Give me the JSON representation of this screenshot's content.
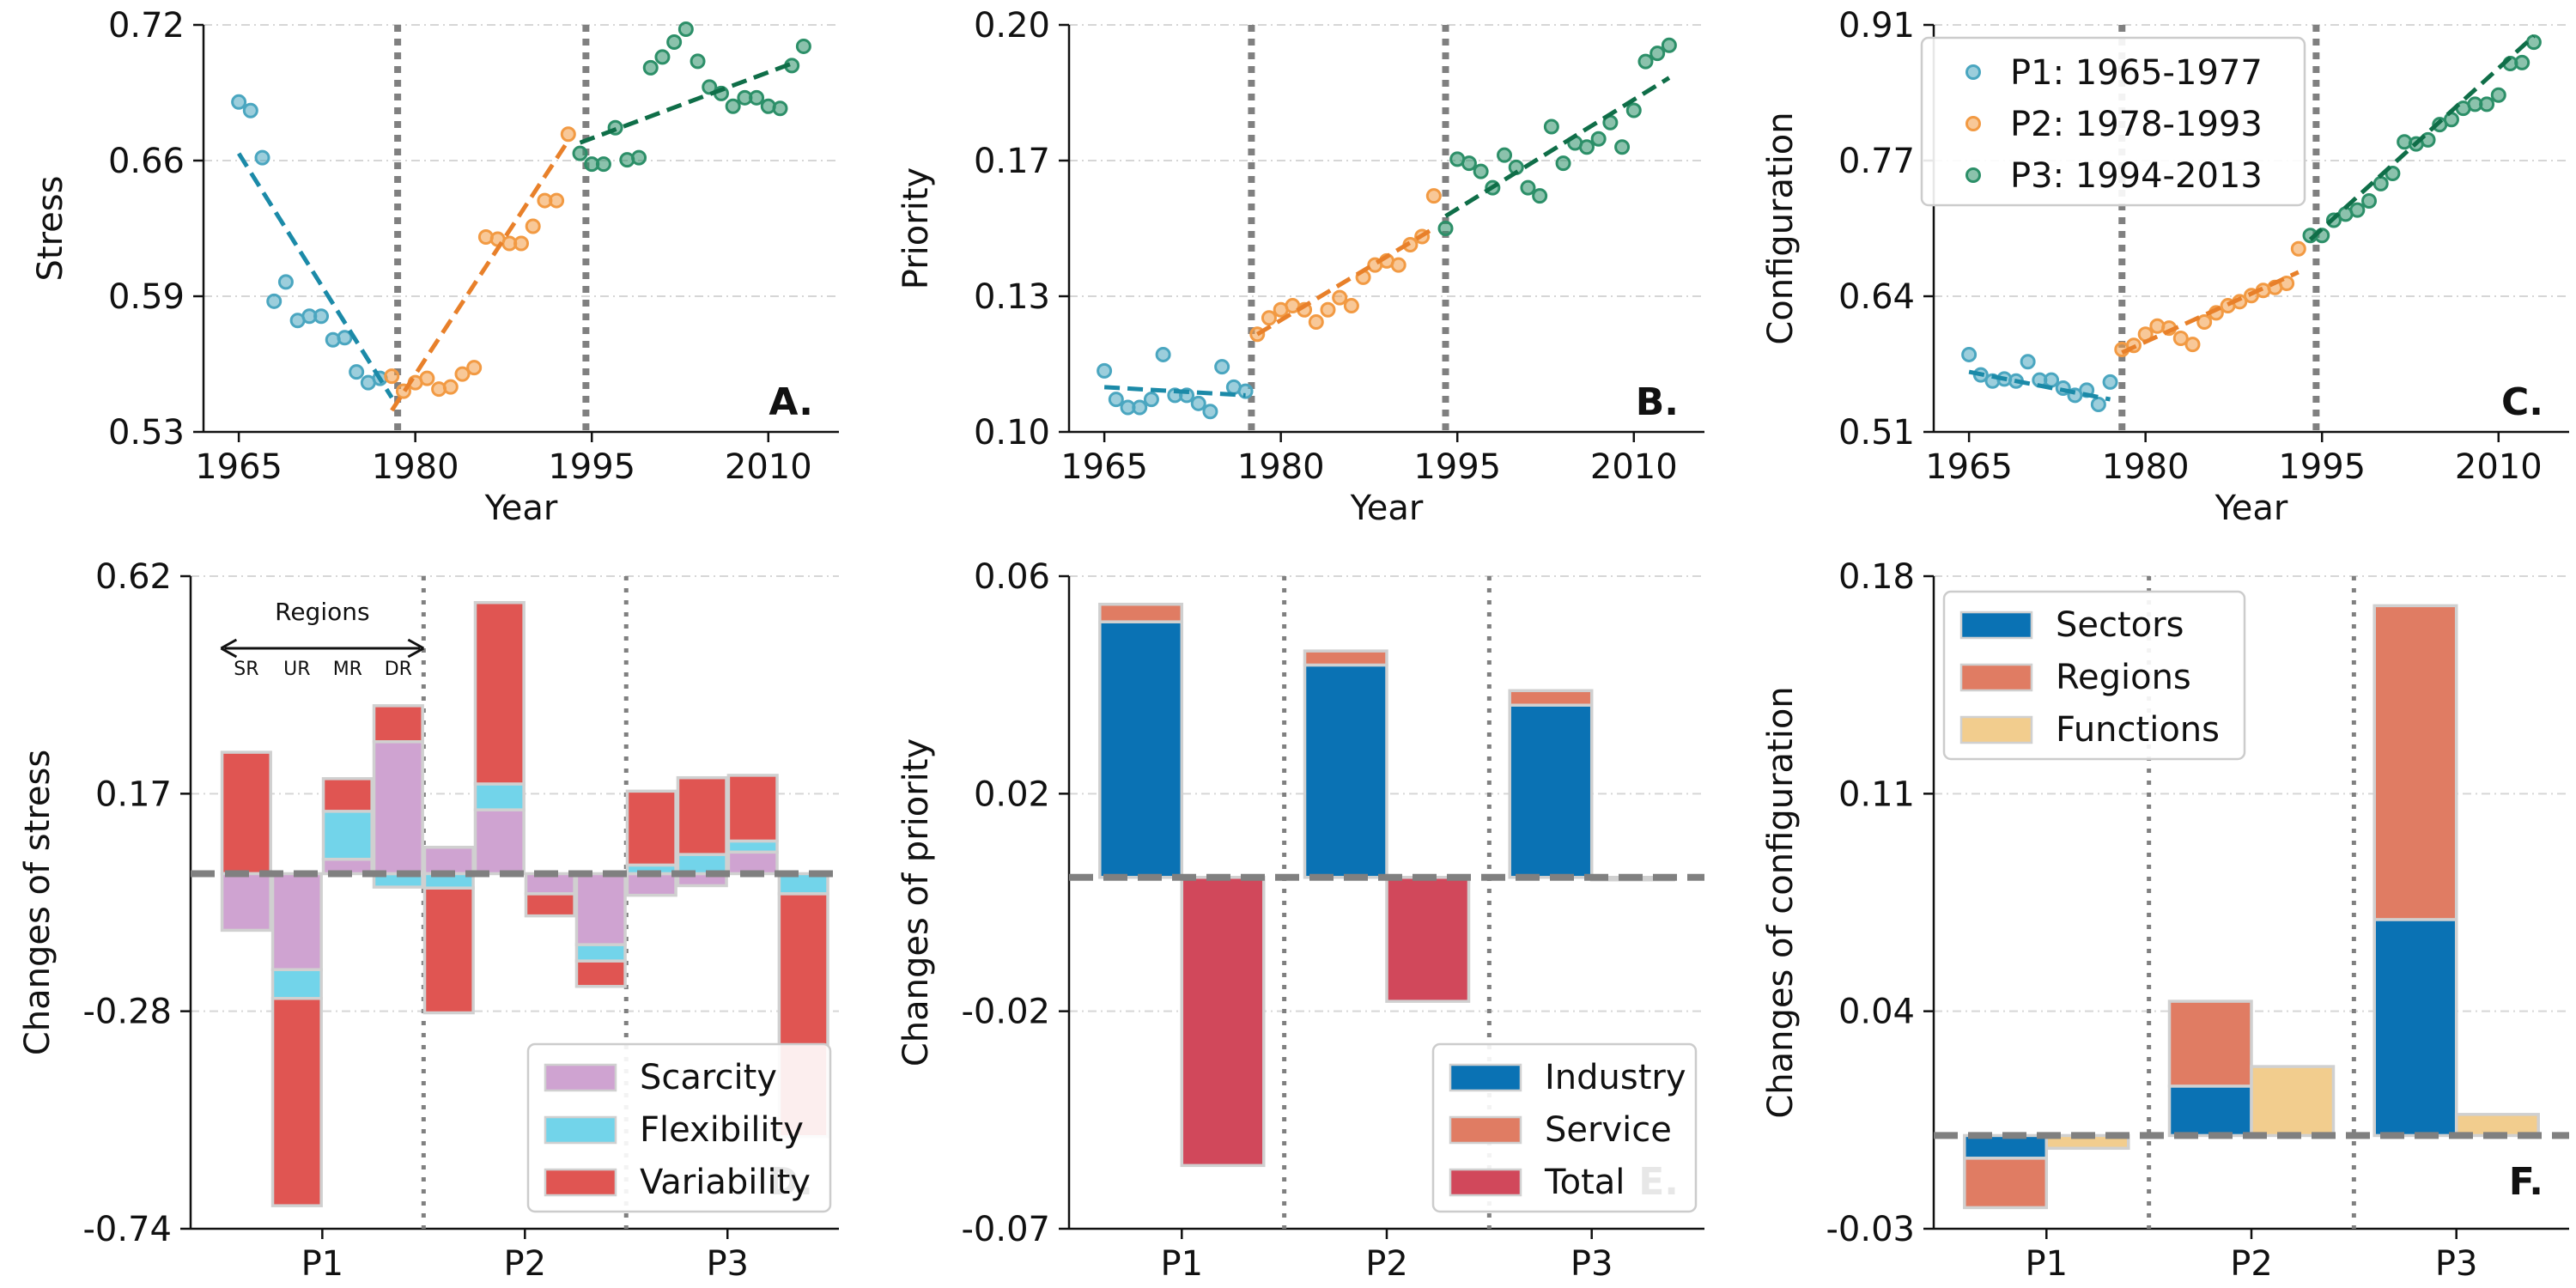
{
  "colors": {
    "p1": "#4aa6c0",
    "p2": "#f29a43",
    "p3": "#2c8f68",
    "p1_fit": "#1b8aa8",
    "p2_fit": "#e8802a",
    "p3_fit": "#0f6e48",
    "scarcity": "#cfa3d1",
    "flexibility": "#72d4ea",
    "variability": "#e05552",
    "industry": "#0a72b4",
    "service": "#e07c63",
    "total": "#d1485b",
    "functions": "#f2cd8e",
    "divider": "#808080",
    "grid": "#d6d6d6",
    "bar_edge": "#d0d0d0"
  },
  "chart_data": [
    {
      "id": "A",
      "type": "scatter",
      "panel_label": "A.",
      "xlabel": "Year",
      "ylabel": "Stress",
      "xlim": [
        1962,
        2016
      ],
      "ylim": [
        0.53,
        0.72
      ],
      "xticks": [
        "1965",
        "1980",
        "1995",
        "2010"
      ],
      "yticks": [
        "0.53",
        "0.59",
        "0.66",
        "0.72"
      ],
      "dividers": [
        1978.5,
        1994.5
      ],
      "series": [
        {
          "period": "p1",
          "x": [
            1965,
            1966,
            1967,
            1968,
            1969,
            1970,
            1971,
            1972,
            1973,
            1974,
            1975,
            1976,
            1977
          ],
          "y": [
            0.684,
            0.68,
            0.658,
            0.591,
            0.6,
            0.582,
            0.584,
            0.584,
            0.573,
            0.574,
            0.558,
            0.553,
            0.555
          ],
          "fit": [
            [
              1965,
              0.66
            ],
            [
              1978,
              0.546
            ]
          ]
        },
        {
          "period": "p2",
          "x": [
            1978,
            1979,
            1980,
            1981,
            1982,
            1983,
            1984,
            1985,
            1986,
            1987,
            1988,
            1989,
            1990,
            1991,
            1992,
            1993
          ],
          "y": [
            0.556,
            0.549,
            0.553,
            0.555,
            0.55,
            0.551,
            0.557,
            0.56,
            0.621,
            0.62,
            0.618,
            0.618,
            0.626,
            0.638,
            0.638,
            0.669
          ],
          "fit": [
            [
              1978,
              0.54
            ],
            [
              1993,
              0.666
            ]
          ]
        },
        {
          "period": "p3",
          "x": [
            1994,
            1995,
            1996,
            1997,
            1998,
            1999,
            2000,
            2001,
            2002,
            2003,
            2004,
            2005,
            2006,
            2007,
            2008,
            2009,
            2010,
            2011,
            2012,
            2013
          ],
          "y": [
            0.66,
            0.655,
            0.655,
            0.672,
            0.657,
            0.658,
            0.7,
            0.705,
            0.712,
            0.718,
            0.703,
            0.691,
            0.688,
            0.682,
            0.686,
            0.686,
            0.682,
            0.681,
            0.701,
            0.71
          ],
          "fit": [
            [
              1994,
              0.665
            ],
            [
              2012,
              0.702
            ]
          ]
        }
      ]
    },
    {
      "id": "B",
      "type": "scatter",
      "panel_label": "B.",
      "xlabel": "Year",
      "ylabel": "Priority",
      "xlim": [
        1962,
        2016
      ],
      "ylim": [
        0.1,
        0.2
      ],
      "xticks": [
        "1965",
        "1980",
        "1995",
        "2010"
      ],
      "yticks": [
        "0.10",
        "0.13",
        "0.17",
        "0.20"
      ],
      "dividers": [
        1977.5,
        1994
      ],
      "series": [
        {
          "period": "p1",
          "x": [
            1965,
            1966,
            1967,
            1968,
            1969,
            1970,
            1971,
            1972,
            1973,
            1974,
            1975,
            1976,
            1977
          ],
          "y": [
            0.115,
            0.108,
            0.106,
            0.106,
            0.108,
            0.119,
            0.109,
            0.109,
            0.107,
            0.105,
            0.116,
            0.111,
            0.11
          ],
          "fit": [
            [
              1965,
              0.111
            ],
            [
              1977,
              0.109
            ]
          ]
        },
        {
          "period": "p2",
          "x": [
            1978,
            1979,
            1980,
            1981,
            1982,
            1983,
            1984,
            1985,
            1986,
            1987,
            1988,
            1989,
            1990,
            1991,
            1992,
            1993
          ],
          "y": [
            0.124,
            0.128,
            0.13,
            0.131,
            0.13,
            0.127,
            0.13,
            0.133,
            0.131,
            0.138,
            0.141,
            0.142,
            0.141,
            0.146,
            0.148,
            0.158
          ],
          "fit": [
            [
              1978,
              0.124
            ],
            [
              1993,
              0.15
            ]
          ]
        },
        {
          "period": "p3",
          "x": [
            1994,
            1995,
            1996,
            1997,
            1998,
            1999,
            2000,
            2001,
            2002,
            2003,
            2004,
            2005,
            2006,
            2007,
            2008,
            2009,
            2010,
            2011,
            2012,
            2013
          ],
          "y": [
            0.15,
            0.167,
            0.166,
            0.164,
            0.16,
            0.168,
            0.165,
            0.16,
            0.158,
            0.175,
            0.166,
            0.171,
            0.17,
            0.172,
            0.176,
            0.17,
            0.179,
            0.191,
            0.193,
            0.195
          ],
          "fit": [
            [
              1994,
              0.153
            ],
            [
              2013,
              0.187
            ]
          ]
        }
      ]
    },
    {
      "id": "C",
      "type": "scatter",
      "panel_label": "C.",
      "xlabel": "Year",
      "ylabel": "Configuration",
      "xlim": [
        1962,
        2016
      ],
      "ylim": [
        0.51,
        0.91
      ],
      "xticks": [
        "1965",
        "1980",
        "1995",
        "2010"
      ],
      "yticks": [
        "0.51",
        "0.64",
        "0.77",
        "0.91"
      ],
      "dividers": [
        1978,
        1994.5
      ],
      "legend": {
        "placement": "upper-left",
        "items": [
          {
            "period": "p1",
            "label": "P1: 1965-1977"
          },
          {
            "period": "p2",
            "label": "P2: 1978-1993"
          },
          {
            "period": "p3",
            "label": "P3: 1994-2013"
          }
        ]
      },
      "series": [
        {
          "period": "p1",
          "x": [
            1965,
            1966,
            1967,
            1968,
            1969,
            1970,
            1971,
            1972,
            1973,
            1974,
            1975,
            1976,
            1977
          ],
          "y": [
            0.586,
            0.566,
            0.56,
            0.562,
            0.56,
            0.579,
            0.561,
            0.561,
            0.553,
            0.546,
            0.551,
            0.537,
            0.559
          ],
          "fit": [
            [
              1965,
              0.569
            ],
            [
              1977,
              0.542
            ]
          ]
        },
        {
          "period": "p2",
          "x": [
            1978,
            1979,
            1980,
            1981,
            1982,
            1983,
            1984,
            1985,
            1986,
            1987,
            1988,
            1989,
            1990,
            1991,
            1992,
            1993
          ],
          "y": [
            0.591,
            0.595,
            0.606,
            0.614,
            0.612,
            0.602,
            0.596,
            0.618,
            0.627,
            0.634,
            0.638,
            0.644,
            0.649,
            0.652,
            0.656,
            0.69
          ],
          "fit": [
            [
              1978,
              0.588
            ],
            [
              1993,
              0.667
            ]
          ]
        },
        {
          "period": "p3",
          "x": [
            1994,
            1995,
            1996,
            1997,
            1998,
            1999,
            2000,
            2001,
            2002,
            2003,
            2004,
            2005,
            2006,
            2007,
            2008,
            2009,
            2010,
            2011,
            2012,
            2013
          ],
          "y": [
            0.703,
            0.703,
            0.718,
            0.724,
            0.728,
            0.737,
            0.754,
            0.764,
            0.795,
            0.793,
            0.797,
            0.812,
            0.817,
            0.828,
            0.832,
            0.832,
            0.841,
            0.872,
            0.873,
            0.893
          ],
          "fit": [
            [
              1994,
              0.699
            ],
            [
              2013,
              0.899
            ]
          ]
        }
      ]
    },
    {
      "id": "D",
      "type": "bar",
      "panel_label": "D.",
      "xlabel": "Period",
      "ylabel": "Changes of stress",
      "ylim": [
        -0.74,
        0.62
      ],
      "yticks": [
        "-0.74",
        "-0.28",
        "0.17",
        "0.62"
      ],
      "categories": [
        "P1",
        "P2",
        "P3"
      ],
      "group_labels": [
        "SR",
        "UR",
        "MR",
        "DR"
      ],
      "annotation": "Regions",
      "legend": {
        "placement": "lower-right",
        "items": [
          {
            "key": "scarcity",
            "label": "Scarcity"
          },
          {
            "key": "flexibility",
            "label": "Flexibility"
          },
          {
            "key": "variability",
            "label": "Variability"
          }
        ]
      },
      "segments": [
        {
          "cat": 0,
          "slot": 0,
          "key": "variability",
          "from": 0.0,
          "to": 0.253
        },
        {
          "cat": 0,
          "slot": 0,
          "key": "scarcity",
          "from": 0.0,
          "to": -0.118
        },
        {
          "cat": 0,
          "slot": 1,
          "key": "scarcity",
          "from": 0.0,
          "to": -0.2
        },
        {
          "cat": 0,
          "slot": 1,
          "key": "flexibility",
          "from": -0.2,
          "to": -0.26
        },
        {
          "cat": 0,
          "slot": 1,
          "key": "variability",
          "from": -0.26,
          "to": -0.692
        },
        {
          "cat": 0,
          "slot": 2,
          "key": "scarcity",
          "from": 0.0,
          "to": 0.03
        },
        {
          "cat": 0,
          "slot": 2,
          "key": "flexibility",
          "from": 0.03,
          "to": 0.13
        },
        {
          "cat": 0,
          "slot": 2,
          "key": "variability",
          "from": 0.13,
          "to": 0.198
        },
        {
          "cat": 0,
          "slot": 3,
          "key": "flexibility",
          "from": 0.0,
          "to": -0.028
        },
        {
          "cat": 0,
          "slot": 3,
          "key": "scarcity",
          "from": 0.0,
          "to": 0.275
        },
        {
          "cat": 0,
          "slot": 3,
          "key": "variability",
          "from": 0.275,
          "to": 0.35
        },
        {
          "cat": 1,
          "slot": 0,
          "key": "scarcity",
          "from": 0.0,
          "to": 0.055
        },
        {
          "cat": 1,
          "slot": 0,
          "key": "flexibility",
          "from": 0.0,
          "to": -0.03
        },
        {
          "cat": 1,
          "slot": 0,
          "key": "variability",
          "from": -0.03,
          "to": -0.29
        },
        {
          "cat": 1,
          "slot": 1,
          "key": "scarcity",
          "from": 0.0,
          "to": 0.133
        },
        {
          "cat": 1,
          "slot": 1,
          "key": "flexibility",
          "from": 0.133,
          "to": 0.187
        },
        {
          "cat": 1,
          "slot": 1,
          "key": "variability",
          "from": 0.187,
          "to": 0.565
        },
        {
          "cat": 1,
          "slot": 2,
          "key": "scarcity",
          "from": 0.0,
          "to": -0.042
        },
        {
          "cat": 1,
          "slot": 2,
          "key": "variability",
          "from": -0.042,
          "to": -0.088
        },
        {
          "cat": 1,
          "slot": 3,
          "key": "scarcity",
          "from": 0.0,
          "to": -0.148
        },
        {
          "cat": 1,
          "slot": 3,
          "key": "flexibility",
          "from": -0.148,
          "to": -0.182
        },
        {
          "cat": 1,
          "slot": 3,
          "key": "variability",
          "from": -0.182,
          "to": -0.235
        },
        {
          "cat": 2,
          "slot": 0,
          "key": "scarcity",
          "from": 0.0,
          "to": -0.045
        },
        {
          "cat": 2,
          "slot": 0,
          "key": "flexibility",
          "from": 0.0,
          "to": 0.018
        },
        {
          "cat": 2,
          "slot": 0,
          "key": "variability",
          "from": 0.018,
          "to": 0.172
        },
        {
          "cat": 2,
          "slot": 1,
          "key": "scarcity",
          "from": 0.0,
          "to": -0.025
        },
        {
          "cat": 2,
          "slot": 1,
          "key": "flexibility",
          "from": 0.0,
          "to": 0.04
        },
        {
          "cat": 2,
          "slot": 1,
          "key": "variability",
          "from": 0.04,
          "to": 0.2
        },
        {
          "cat": 2,
          "slot": 2,
          "key": "scarcity",
          "from": 0.0,
          "to": 0.045
        },
        {
          "cat": 2,
          "slot": 2,
          "key": "flexibility",
          "from": 0.045,
          "to": 0.068
        },
        {
          "cat": 2,
          "slot": 2,
          "key": "variability",
          "from": 0.068,
          "to": 0.205
        },
        {
          "cat": 2,
          "slot": 3,
          "key": "flexibility",
          "from": 0.0,
          "to": -0.042
        },
        {
          "cat": 2,
          "slot": 3,
          "key": "variability",
          "from": -0.042,
          "to": -0.548
        }
      ]
    },
    {
      "id": "E",
      "type": "bar",
      "panel_label": "E.",
      "xlabel": "Period",
      "ylabel": "Changes of priority",
      "ylim": [
        -0.07,
        0.06
      ],
      "yticks": [
        "-0.07",
        "-0.02",
        "0.02",
        "0.06"
      ],
      "categories": [
        "P1",
        "P2",
        "P3"
      ],
      "legend": {
        "placement": "lower-right",
        "items": [
          {
            "key": "industry",
            "label": "Industry"
          },
          {
            "key": "service",
            "label": "Service"
          },
          {
            "key": "total",
            "label": "Total"
          }
        ]
      },
      "segments": [
        {
          "cat": 0,
          "slot": 0,
          "key": "industry",
          "from": 0.0,
          "to": 0.0509
        },
        {
          "cat": 0,
          "slot": 0,
          "key": "service",
          "from": 0.0509,
          "to": 0.0544
        },
        {
          "cat": 0,
          "slot": 1,
          "key": "total",
          "from": 0.0,
          "to": -0.0574
        },
        {
          "cat": 1,
          "slot": 0,
          "key": "industry",
          "from": 0.0,
          "to": 0.0423
        },
        {
          "cat": 1,
          "slot": 0,
          "key": "service",
          "from": 0.0423,
          "to": 0.0451
        },
        {
          "cat": 1,
          "slot": 1,
          "key": "total",
          "from": 0.0,
          "to": -0.0247
        },
        {
          "cat": 2,
          "slot": 0,
          "key": "industry",
          "from": 0.0,
          "to": 0.0343
        },
        {
          "cat": 2,
          "slot": 0,
          "key": "service",
          "from": 0.0343,
          "to": 0.0372
        },
        {
          "cat": 2,
          "slot": 1,
          "key": "total",
          "from": 0.0,
          "to": -0.0005
        }
      ]
    },
    {
      "id": "F",
      "type": "bar",
      "panel_label": "F.",
      "xlabel": "Period",
      "ylabel": "Changes of configuration",
      "ylim": [
        -0.03,
        0.18
      ],
      "yticks": [
        "-0.03",
        "0.04",
        "0.11",
        "0.18"
      ],
      "categories": [
        "P1",
        "P2",
        "P3"
      ],
      "legend": {
        "placement": "upper-left",
        "items": [
          {
            "key": "industry",
            "label": "Sectors"
          },
          {
            "key": "service",
            "label": "Regions"
          },
          {
            "key": "functions",
            "label": "Functions"
          }
        ]
      },
      "segments": [
        {
          "cat": 0,
          "slot": 0,
          "key": "industry",
          "from": 0.0,
          "to": -0.0073
        },
        {
          "cat": 0,
          "slot": 0,
          "key": "service",
          "from": -0.0073,
          "to": -0.0232
        },
        {
          "cat": 0,
          "slot": 1,
          "key": "functions",
          "from": 0.0,
          "to": -0.0041
        },
        {
          "cat": 1,
          "slot": 0,
          "key": "industry",
          "from": 0.0,
          "to": 0.0159
        },
        {
          "cat": 1,
          "slot": 0,
          "key": "service",
          "from": 0.0159,
          "to": 0.0432
        },
        {
          "cat": 1,
          "slot": 1,
          "key": "functions",
          "from": 0.0,
          "to": 0.0222
        },
        {
          "cat": 2,
          "slot": 0,
          "key": "industry",
          "from": 0.0,
          "to": 0.0695
        },
        {
          "cat": 2,
          "slot": 0,
          "key": "service",
          "from": 0.0695,
          "to": 0.1705
        },
        {
          "cat": 2,
          "slot": 1,
          "key": "functions",
          "from": 0.0,
          "to": 0.0068
        }
      ]
    }
  ]
}
